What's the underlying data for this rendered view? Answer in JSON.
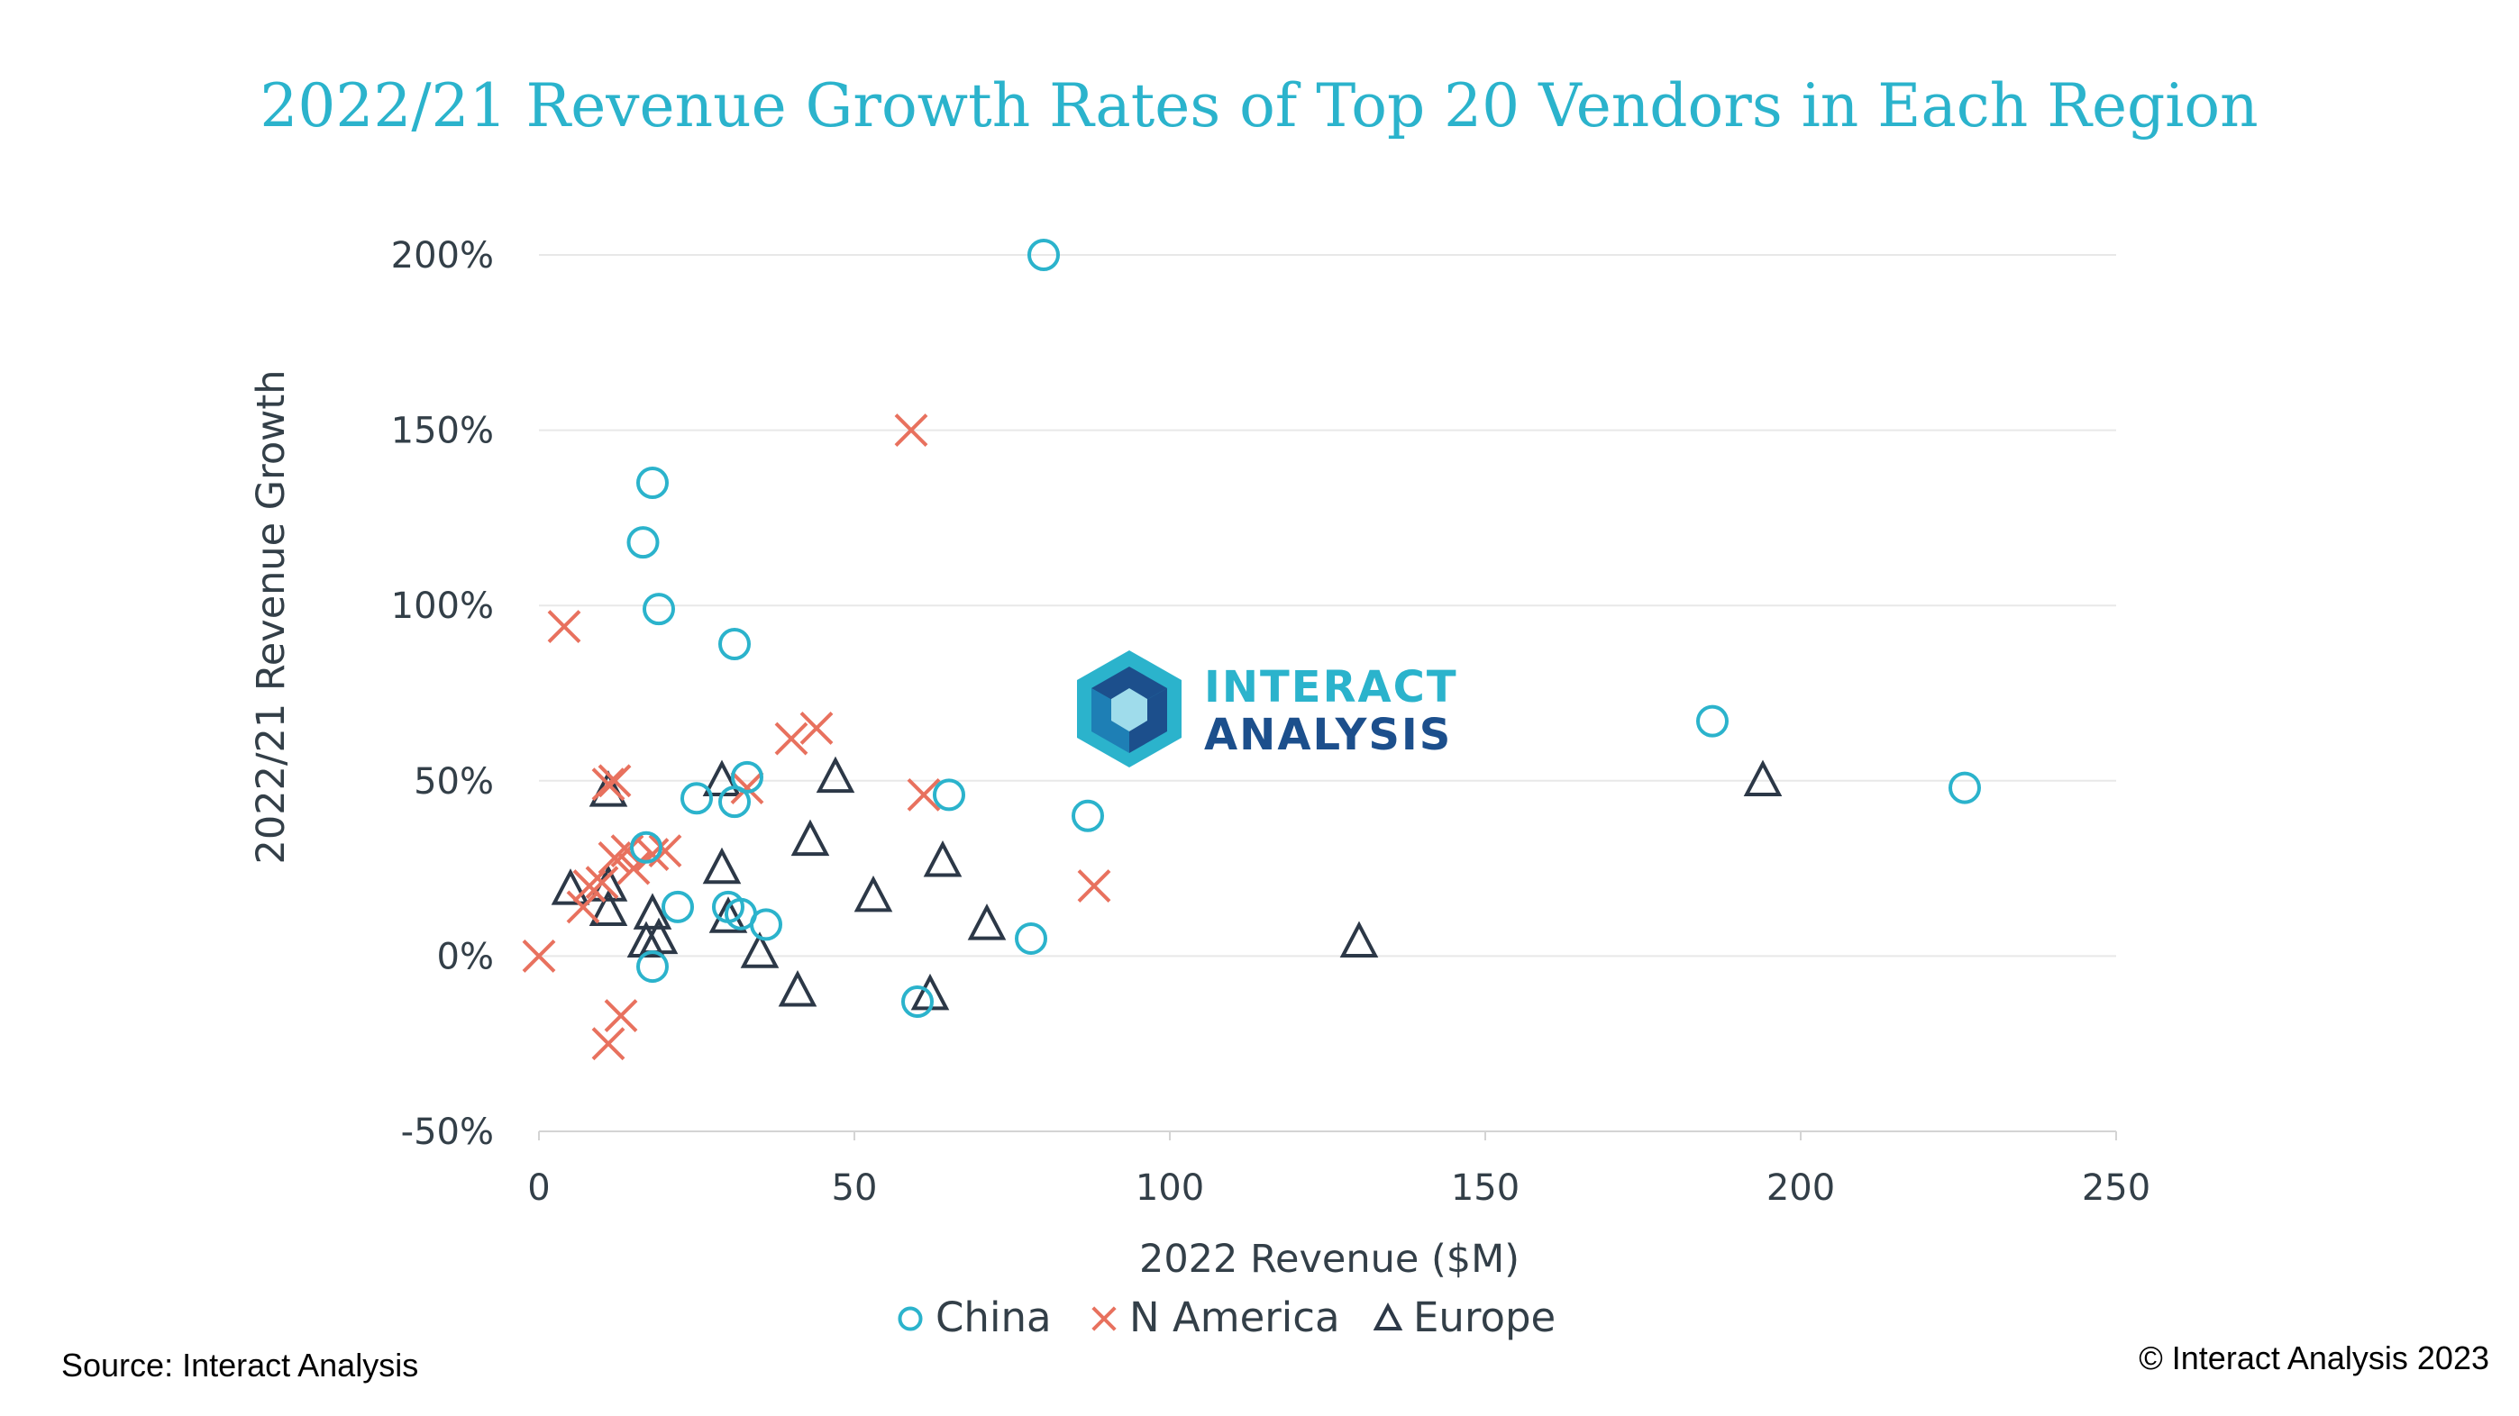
{
  "colors": {
    "china": "#2bb3cc",
    "n_america": "#e8715e",
    "europe": "#2c3847",
    "title": "#2bb3cc",
    "text": "#333f48",
    "grid": "#e8e8e8",
    "logo_light": "#2bb3cc",
    "logo_dark": "#1c4f8c"
  },
  "logo": {
    "line1": "INTERACT",
    "line2": "ANALYSIS"
  },
  "footer": {
    "source": "Source: Interact Analysis",
    "copyright": "© Interact Analysis 2023"
  },
  "chart_data": {
    "type": "scatter",
    "title": "2022/21 Revenue Growth Rates of Top 20 Vendors in Each Region",
    "xlabel": "2022 Revenue ($M)",
    "ylabel": "2022/21 Revenue Growth",
    "xlim": [
      0,
      250
    ],
    "ylim": [
      -50,
      200
    ],
    "xticks": [
      0,
      50,
      100,
      150,
      200,
      250
    ],
    "xtick_labels": [
      "0",
      "50",
      "100",
      "150",
      "200",
      "250"
    ],
    "yticks": [
      -50,
      0,
      50,
      100,
      150,
      200
    ],
    "ytick_labels": [
      "-50%",
      "0%",
      "50%",
      "100%",
      "150%",
      "200%"
    ],
    "grid": "horizontal",
    "legend_position": "bottom",
    "series": [
      {
        "name": "China",
        "marker": "circle",
        "points": [
          [
            80,
            200
          ],
          [
            18,
            135
          ],
          [
            16.5,
            118
          ],
          [
            19,
            99
          ],
          [
            31,
            89
          ],
          [
            186,
            67
          ],
          [
            226,
            48
          ],
          [
            33,
            51
          ],
          [
            25,
            45
          ],
          [
            65,
            46
          ],
          [
            31,
            44
          ],
          [
            17,
            31
          ],
          [
            87,
            40
          ],
          [
            22,
            14
          ],
          [
            30,
            14
          ],
          [
            32,
            12
          ],
          [
            36,
            9
          ],
          [
            78,
            5
          ],
          [
            18,
            -3
          ],
          [
            60,
            -13
          ]
        ]
      },
      {
        "name": "N America",
        "marker": "x",
        "points": [
          [
            59,
            150
          ],
          [
            4,
            94
          ],
          [
            40,
            62
          ],
          [
            44,
            65
          ],
          [
            11,
            49
          ],
          [
            33,
            48
          ],
          [
            61,
            46
          ],
          [
            12,
            28
          ],
          [
            15,
            25
          ],
          [
            18,
            29
          ],
          [
            8,
            20
          ],
          [
            88,
            20
          ],
          [
            7,
            14
          ],
          [
            0,
            0
          ],
          [
            13,
            -17
          ],
          [
            11,
            -25
          ],
          [
            10,
            21
          ],
          [
            12,
            50
          ],
          [
            14,
            30
          ],
          [
            20,
            30
          ]
        ]
      },
      {
        "name": "Europe",
        "marker": "triangle",
        "points": [
          [
            194,
            50
          ],
          [
            47,
            51
          ],
          [
            29,
            50
          ],
          [
            11,
            47
          ],
          [
            43,
            33
          ],
          [
            29,
            25
          ],
          [
            64,
            27
          ],
          [
            5,
            19
          ],
          [
            11,
            20
          ],
          [
            53,
            17
          ],
          [
            11,
            13
          ],
          [
            18,
            12
          ],
          [
            30,
            11
          ],
          [
            71,
            9
          ],
          [
            17,
            4
          ],
          [
            19,
            5
          ],
          [
            35,
            1
          ],
          [
            130,
            4
          ],
          [
            41,
            -10
          ],
          [
            62,
            -11
          ]
        ]
      }
    ]
  }
}
